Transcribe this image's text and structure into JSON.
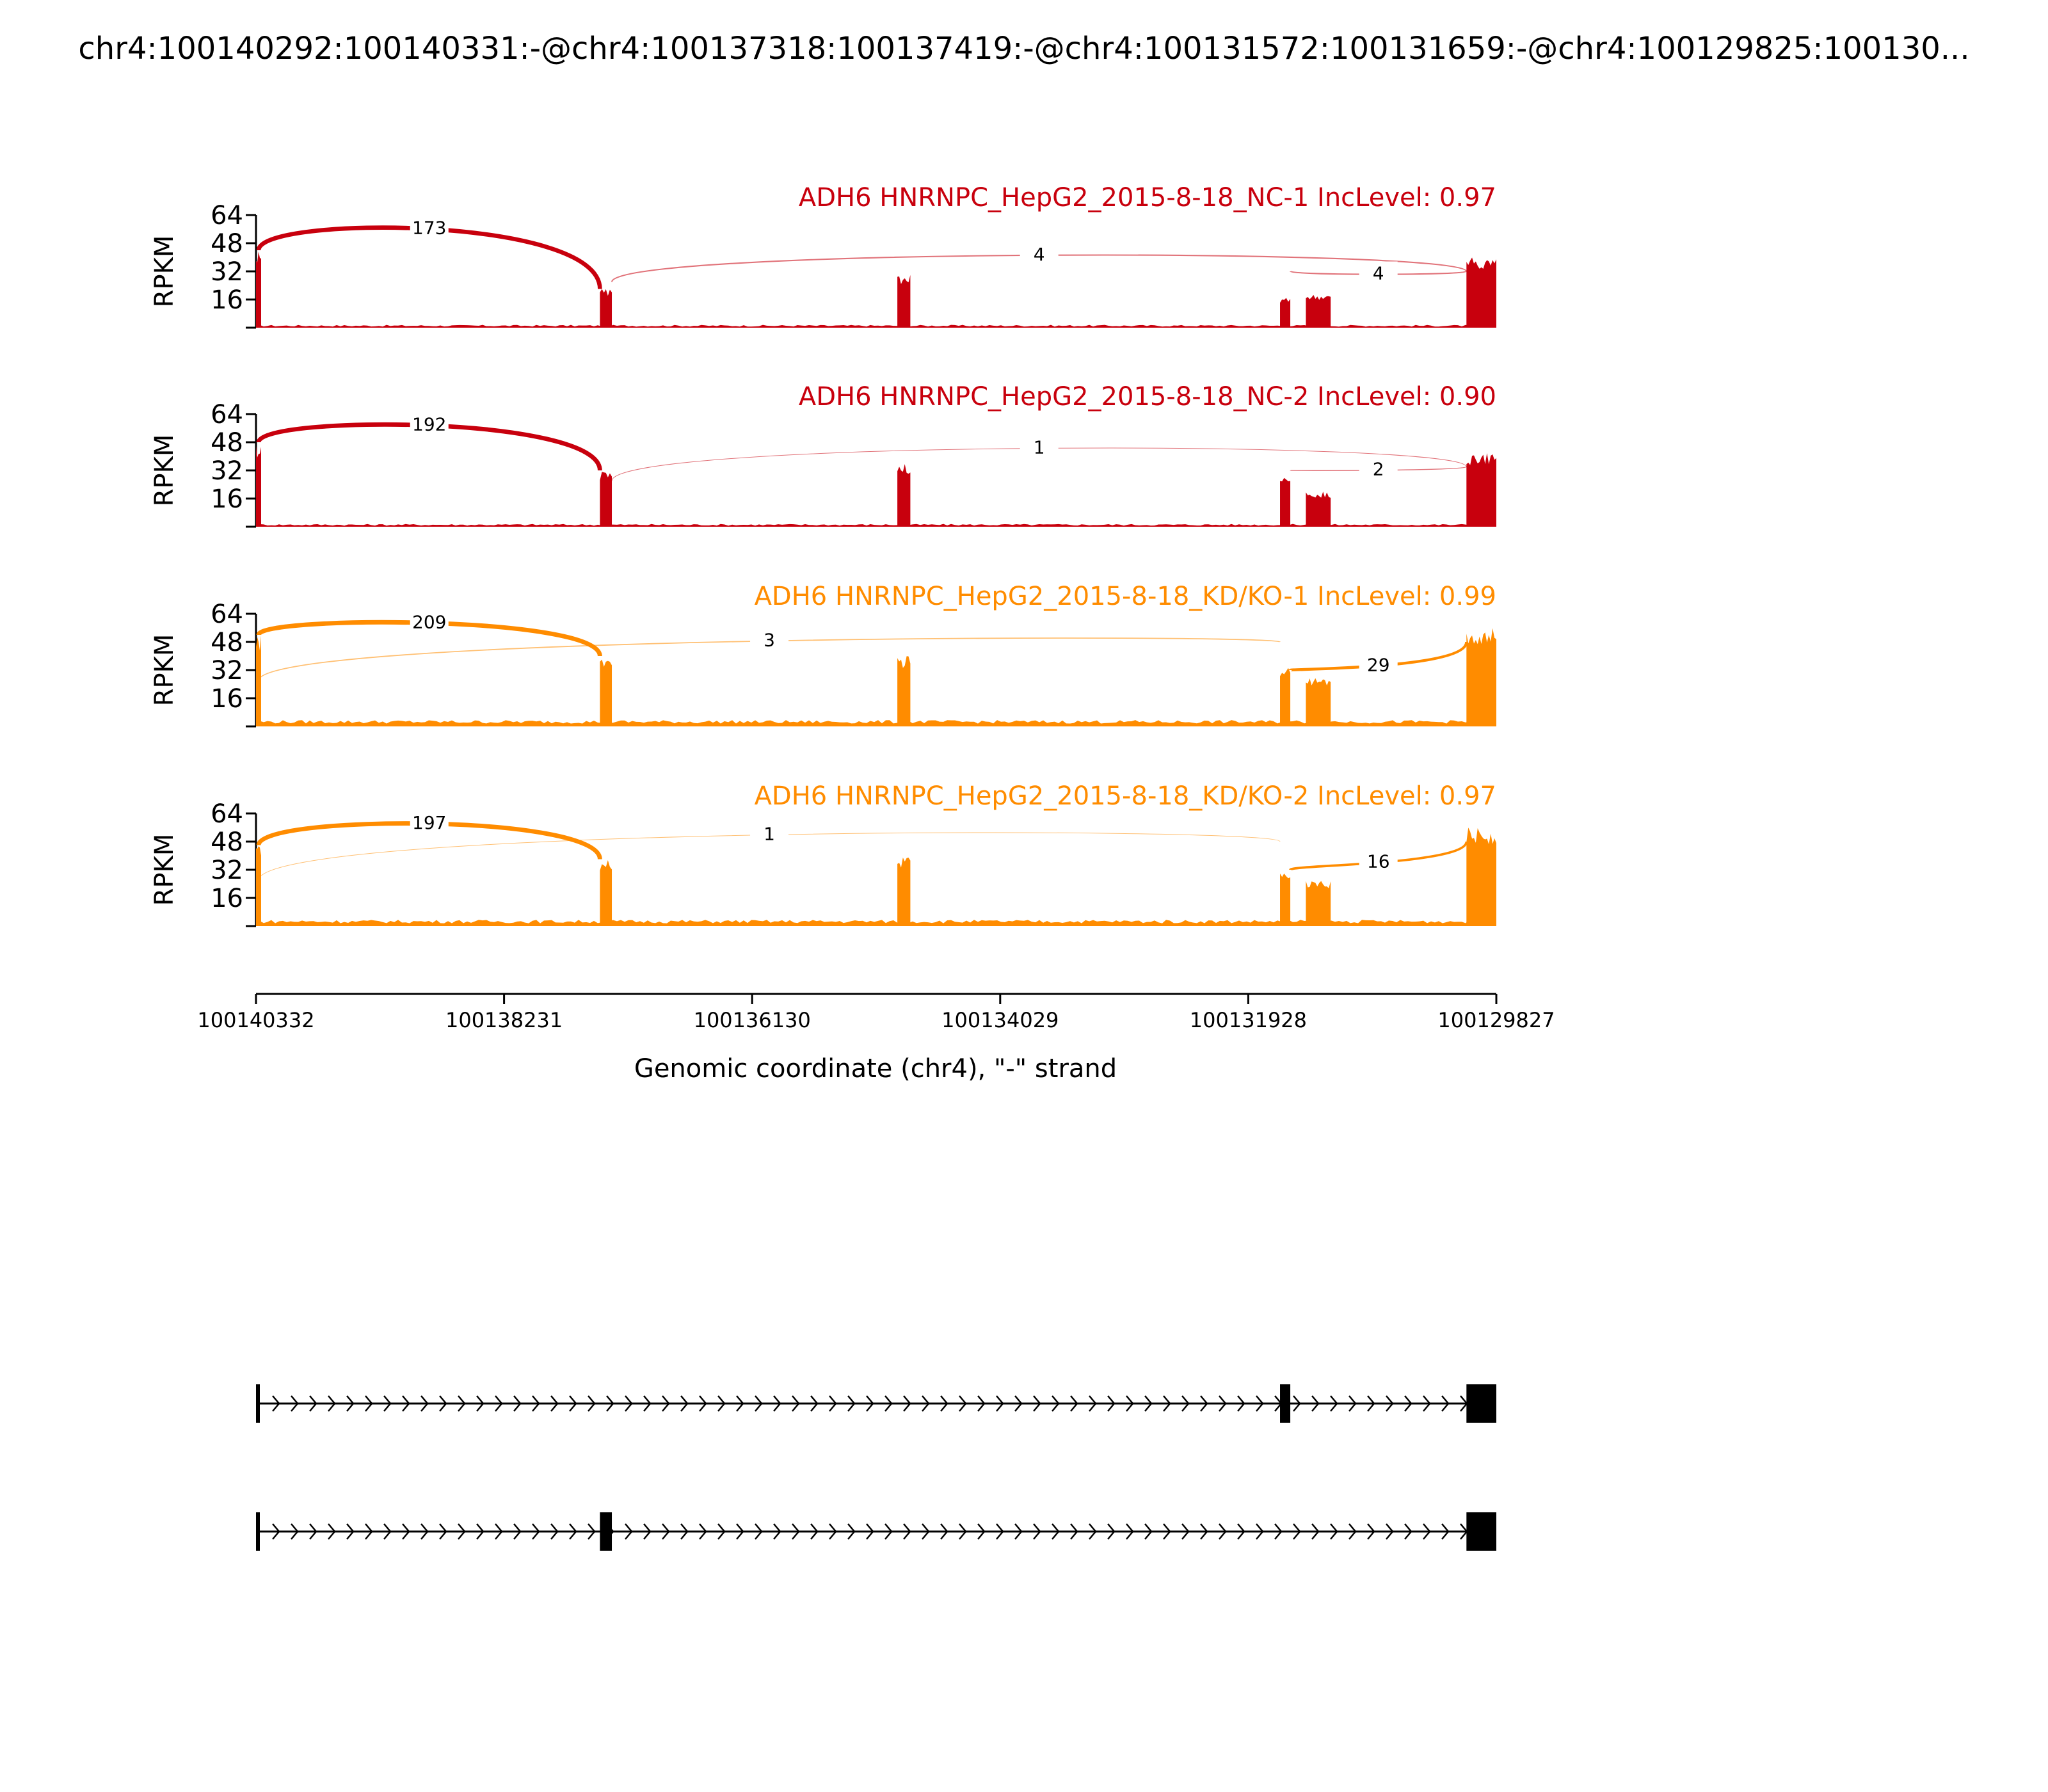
{
  "chart_data": {
    "type": "sashimi",
    "title": "chr4:100140292:100140331:-@chr4:100137318:100137419:-@chr4:100131572:100131659:-@chr4:100129825:100130...",
    "xlabel": "Genomic coordinate (chr4), \"-\" strand",
    "ylabel": "RPKM",
    "x_range": [
      100140332,
      100129827
    ],
    "x_ticks": [
      "100140332",
      "100138231",
      "100136130",
      "100134029",
      "100131928",
      "100129827"
    ],
    "y_ticks": [
      "16",
      "32",
      "48",
      "64"
    ],
    "ylim": [
      0,
      64
    ],
    "exons": [
      {
        "name": "exon-1",
        "start": 100140332,
        "end": 100140310
      },
      {
        "name": "exon-2",
        "start": 100137419,
        "end": 100137318
      },
      {
        "name": "exon-3",
        "start": 100134900,
        "end": 100134790
      },
      {
        "name": "exon-4",
        "start": 100131659,
        "end": 100131572
      },
      {
        "name": "exon-5",
        "start": 100131440,
        "end": 100131230
      },
      {
        "name": "exon-6",
        "start": 100130080,
        "end": 100129827
      }
    ],
    "series": [
      {
        "name": "ADH6 HNRNPC_HepG2_2015-8-18_NC-1 IncLevel: 0.97",
        "color": "#c8000d",
        "exon_heights": [
          44,
          22,
          30,
          17,
          19,
          40
        ],
        "junctions": [
          {
            "start": 100140310,
            "end": 100137419,
            "count": "173",
            "side": "above"
          },
          {
            "start": 100137318,
            "end": 100130080,
            "count": "4",
            "side": "above"
          },
          {
            "start": 100131572,
            "end": 100130080,
            "count": "4",
            "side": "above"
          }
        ]
      },
      {
        "name": "ADH6 HNRNPC_HepG2_2015-8-18_NC-2 IncLevel: 0.90",
        "color": "#c8000d",
        "exon_heights": [
          48,
          32,
          36,
          28,
          20,
          42
        ],
        "junctions": [
          {
            "start": 100140310,
            "end": 100137419,
            "count": "192",
            "side": "above"
          },
          {
            "start": 100137318,
            "end": 100130080,
            "count": "1",
            "side": "above"
          },
          {
            "start": 100131572,
            "end": 100130080,
            "count": "2",
            "side": "above"
          }
        ]
      },
      {
        "name": "ADH6 HNRNPC_HepG2_2015-8-18_KD/KO-1 IncLevel: 0.99",
        "color": "#ff8c00",
        "exon_heights": [
          52,
          40,
          40,
          34,
          28,
          56
        ],
        "junctions": [
          {
            "start": 100140310,
            "end": 100137419,
            "count": "209",
            "side": "above"
          },
          {
            "start": 100140310,
            "end": 100131659,
            "count": "3",
            "side": "above"
          },
          {
            "start": 100131572,
            "end": 100130080,
            "count": "29",
            "side": "above"
          }
        ]
      },
      {
        "name": "ADH6 HNRNPC_HepG2_2015-8-18_KD/KO-2 IncLevel: 0.97",
        "color": "#ff8c00",
        "exon_heights": [
          46,
          38,
          40,
          32,
          26,
          56
        ],
        "junctions": [
          {
            "start": 100140310,
            "end": 100137419,
            "count": "197",
            "side": "above"
          },
          {
            "start": 100140310,
            "end": 100131659,
            "count": "1",
            "side": "above"
          },
          {
            "start": 100131572,
            "end": 100130080,
            "count": "16",
            "side": "above"
          }
        ]
      }
    ],
    "isoforms": [
      {
        "name": "isoform-1",
        "exons": [
          [
            100140332,
            100140310
          ],
          [
            100131659,
            100131572
          ],
          [
            100130080,
            100129827
          ]
        ]
      },
      {
        "name": "isoform-2",
        "exons": [
          [
            100140332,
            100140310
          ],
          [
            100137419,
            100137318
          ],
          [
            100130080,
            100129827
          ]
        ]
      }
    ]
  }
}
